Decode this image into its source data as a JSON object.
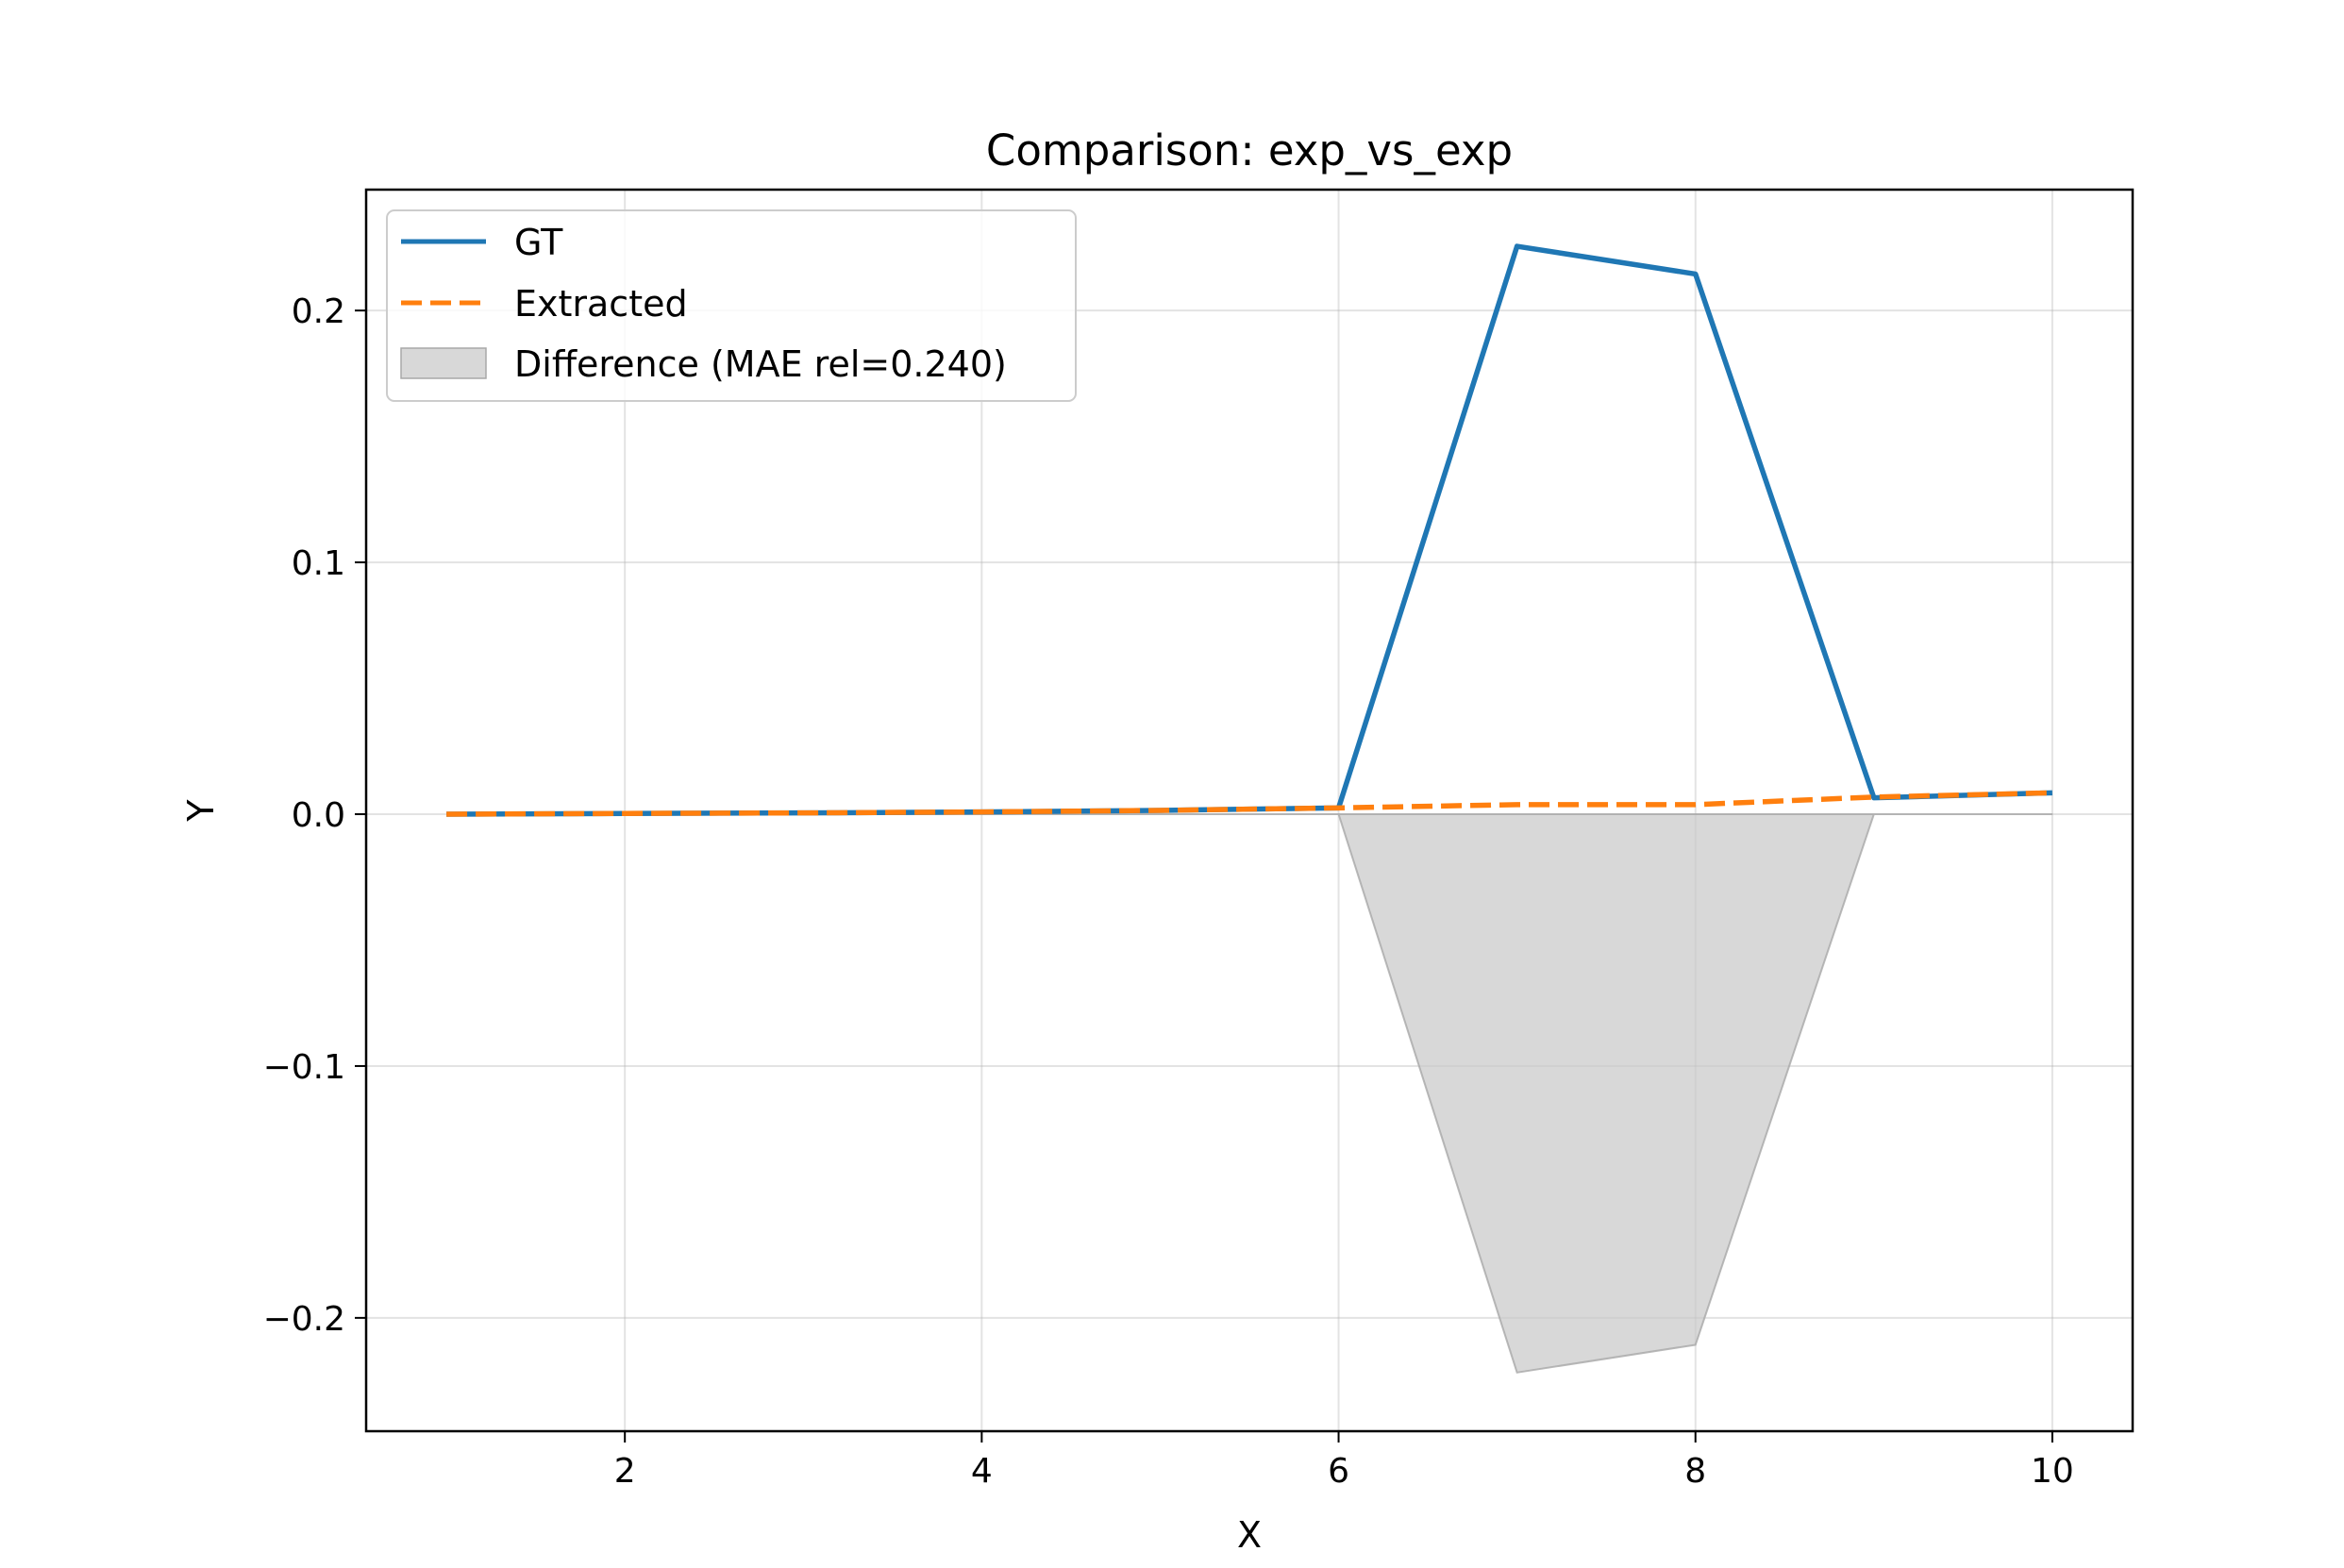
{
  "chart_data": {
    "type": "line",
    "title": "Comparison: exp_vs_exp",
    "xlabel": "X",
    "ylabel": "Y",
    "xlim": [
      0.55,
      10.45
    ],
    "ylim": [
      -0.245,
      0.248
    ],
    "xticks": [
      2,
      4,
      6,
      8,
      10
    ],
    "yticks": [
      -0.2,
      -0.1,
      0.0,
      0.1,
      0.2
    ],
    "xtick_labels": [
      "2",
      "4",
      "6",
      "8",
      "10"
    ],
    "ytick_labels": [
      "−0.2",
      "−0.1",
      "0.0",
      "0.1",
      "0.2"
    ],
    "grid": true,
    "legend_position": "top-left",
    "x": [
      1,
      2,
      3,
      4,
      5,
      6,
      7,
      8,
      9,
      10
    ],
    "series": [
      {
        "name": "GT",
        "style": "solid",
        "color": "#1f77b4",
        "values": [
          0.0,
          0.0003,
          0.0005,
          0.0009,
          0.0015,
          0.0025,
          0.2255,
          0.2145,
          0.0065,
          0.0085
        ]
      },
      {
        "name": "Extracted",
        "style": "dashed",
        "color": "#ff7f0e",
        "values": [
          0.0,
          0.0003,
          0.0005,
          0.0009,
          0.0015,
          0.0025,
          0.0038,
          0.0038,
          0.0068,
          0.0085
        ]
      }
    ],
    "fill": {
      "name": "Difference (MAE rel=0.240)",
      "color": "#c8c8c8",
      "values": [
        0.0,
        0.0,
        0.0,
        0.0,
        0.0,
        0.0,
        -0.2217,
        -0.2107,
        0.0,
        0.0
      ]
    }
  }
}
